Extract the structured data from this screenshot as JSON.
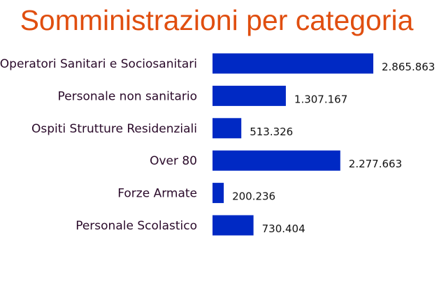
{
  "chart_data": {
    "type": "bar",
    "orientation": "horizontal",
    "title": "Somministrazioni per categoria",
    "categories": [
      "Operatori Sanitari e Sociosanitari",
      "Personale non sanitario",
      "Ospiti Strutture Residenziali",
      "Over 80",
      "Forze Armate",
      "Personale Scolastico"
    ],
    "values": [
      2865863,
      1307167,
      513326,
      2277663,
      200236,
      730404
    ],
    "value_labels": [
      "2.865.863",
      "1.307.167",
      "513.326",
      "2.277.663",
      "200.236",
      "730.404"
    ],
    "xlabel": "",
    "ylabel": "",
    "grid": false,
    "colors": {
      "bar": "#0029c4",
      "title": "#e04e0f"
    }
  }
}
